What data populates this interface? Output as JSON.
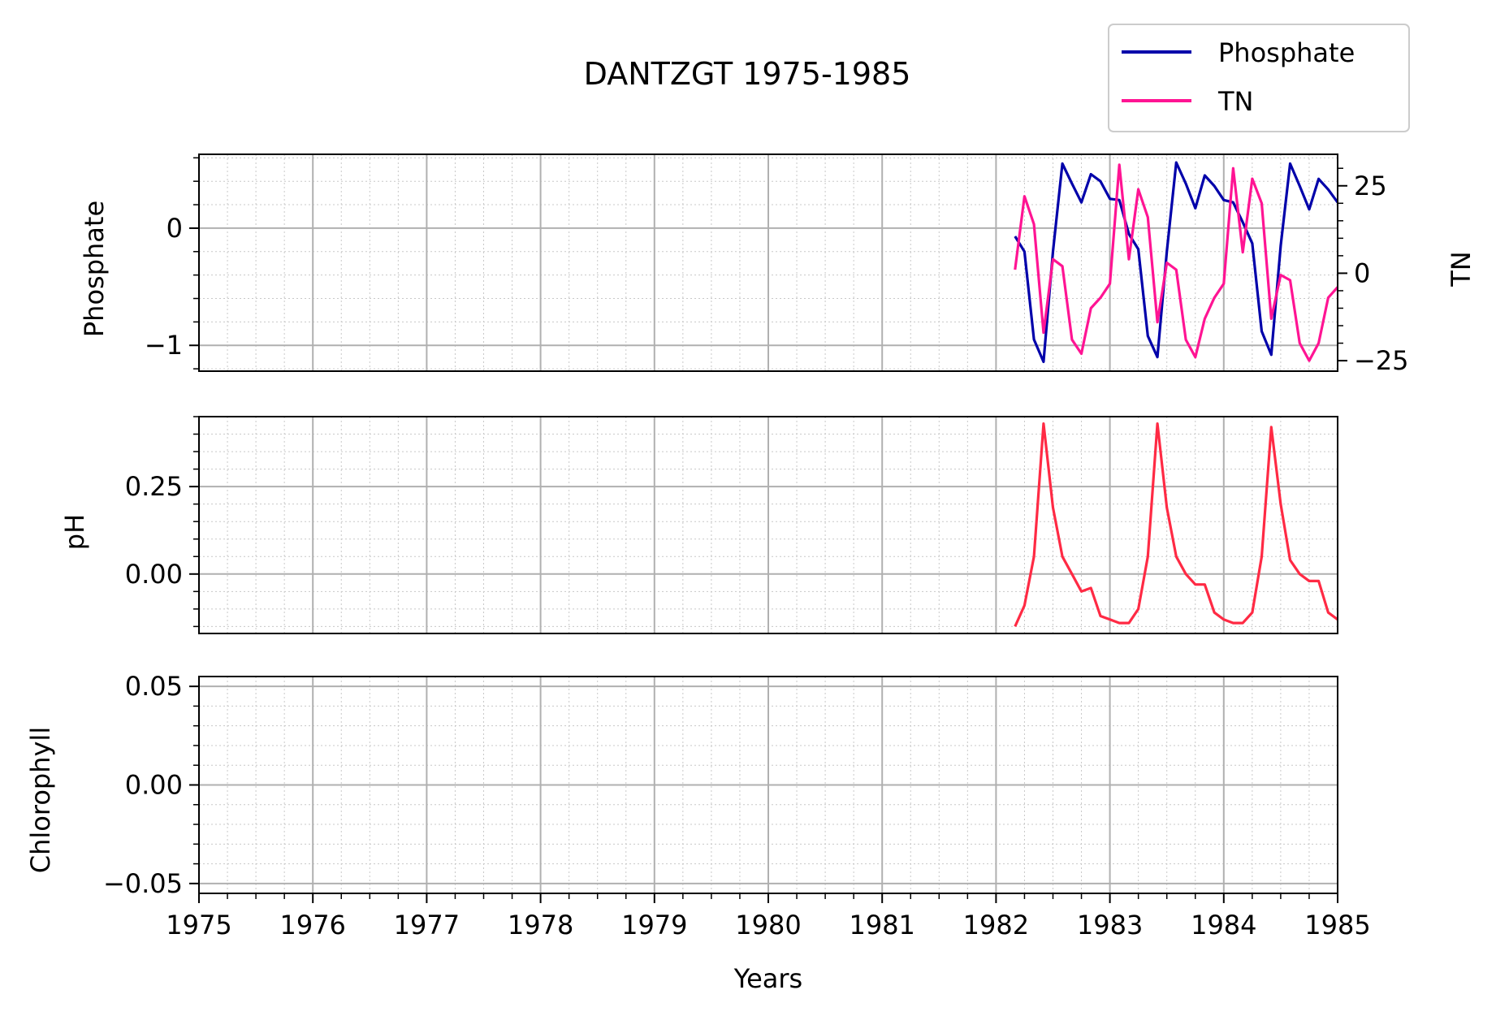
{
  "chart_data": {
    "title": "DANTZGT 1975-1985",
    "type": "line",
    "xlabel": "Years",
    "xlim": [
      1975,
      1985
    ],
    "x_ticks": [
      "1975",
      "1976",
      "1977",
      "1978",
      "1979",
      "1980",
      "1981",
      "1982",
      "1983",
      "1984",
      "1985"
    ],
    "grid": "major and minor (dotted)",
    "legend": {
      "placement": "top-right",
      "entries": [
        {
          "label": "Phosphate",
          "color": "#0000aa"
        },
        {
          "label": "TN",
          "color": "#ff1493"
        }
      ]
    },
    "panels": [
      {
        "ylabel": "Phosphate",
        "ylim": [
          -1.22,
          0.63
        ],
        "yticks": [
          0,
          -1
        ],
        "ytick_labels": [
          "0",
          "−1"
        ],
        "right_axis": {
          "ylabel": "TN",
          "ylim": [
            -28,
            34
          ],
          "yticks": [
            25,
            0,
            -25
          ],
          "ytick_labels": [
            "25",
            "0",
            "−25"
          ]
        },
        "series": [
          {
            "name": "Phosphate",
            "color": "#0000aa",
            "x": [
              1982.167,
              1982.25,
              1982.333,
              1982.417,
              1982.5,
              1982.583,
              1982.667,
              1982.75,
              1982.833,
              1982.917,
              1983.0,
              1983.083,
              1983.167,
              1983.25,
              1983.333,
              1983.417,
              1983.5,
              1983.583,
              1983.667,
              1983.75,
              1983.833,
              1983.917,
              1984.0,
              1984.083,
              1984.167,
              1984.25,
              1984.333,
              1984.417,
              1984.5,
              1984.583,
              1984.667,
              1984.75,
              1984.833,
              1984.917,
              1985.0
            ],
            "values": [
              -0.07,
              -0.2,
              -0.95,
              -1.14,
              -0.2,
              0.55,
              0.38,
              0.22,
              0.46,
              0.4,
              0.25,
              0.24,
              -0.05,
              -0.18,
              -0.92,
              -1.1,
              -0.2,
              0.56,
              0.38,
              0.17,
              0.45,
              0.36,
              0.24,
              0.22,
              0.05,
              -0.13,
              -0.88,
              -1.08,
              -0.15,
              0.55,
              0.36,
              0.16,
              0.42,
              0.33,
              0.22
            ]
          },
          {
            "name": "TN",
            "color": "#ff1493",
            "axis": "right",
            "x": [
              1982.167,
              1982.25,
              1982.333,
              1982.417,
              1982.5,
              1982.583,
              1982.667,
              1982.75,
              1982.833,
              1982.917,
              1983.0,
              1983.083,
              1983.167,
              1983.25,
              1983.333,
              1983.417,
              1983.5,
              1983.583,
              1983.667,
              1983.75,
              1983.833,
              1983.917,
              1984.0,
              1984.083,
              1984.167,
              1984.25,
              1984.333,
              1984.417,
              1984.5,
              1984.583,
              1984.667,
              1984.75,
              1984.833,
              1984.917,
              1985.0
            ],
            "values": [
              1,
              22,
              14,
              -17,
              4,
              2,
              -19,
              -23,
              -10,
              -7,
              -3,
              31,
              4,
              24,
              16,
              -14,
              3,
              1,
              -19,
              -24,
              -13,
              -7,
              -3,
              30,
              6,
              27,
              20,
              -13,
              -0.5,
              -2,
              -20,
              -25,
              -20,
              -7,
              -4
            ]
          }
        ]
      },
      {
        "ylabel": "pH",
        "ylim": [
          -0.17,
          0.45
        ],
        "yticks": [
          0.25,
          0.0
        ],
        "ytick_labels": [
          "0.25",
          "0.00"
        ],
        "series": [
          {
            "name": "pH",
            "color": "#ff2a44",
            "x": [
              1982.167,
              1982.25,
              1982.333,
              1982.417,
              1982.5,
              1982.583,
              1982.667,
              1982.75,
              1982.833,
              1982.917,
              1983.0,
              1983.083,
              1983.167,
              1983.25,
              1983.333,
              1983.417,
              1983.5,
              1983.583,
              1983.667,
              1983.75,
              1983.833,
              1983.917,
              1984.0,
              1984.083,
              1984.167,
              1984.25,
              1984.333,
              1984.417,
              1984.5,
              1984.583,
              1984.667,
              1984.75,
              1984.833,
              1984.917,
              1985.0
            ],
            "values": [
              -0.15,
              -0.09,
              0.05,
              0.43,
              0.19,
              0.05,
              0.0,
              -0.05,
              -0.04,
              -0.12,
              -0.13,
              -0.14,
              -0.14,
              -0.1,
              0.05,
              0.43,
              0.19,
              0.05,
              0.0,
              -0.03,
              -0.03,
              -0.11,
              -0.13,
              -0.14,
              -0.14,
              -0.11,
              0.05,
              0.42,
              0.2,
              0.04,
              0.0,
              -0.02,
              -0.02,
              -0.11,
              -0.13
            ]
          }
        ]
      },
      {
        "ylabel": "Chlorophyll",
        "ylim": [
          -0.055,
          0.055
        ],
        "yticks": [
          0.05,
          0.0,
          -0.05
        ],
        "ytick_labels": [
          "0.05",
          "0.00",
          "−0.05"
        ],
        "series": []
      }
    ]
  }
}
